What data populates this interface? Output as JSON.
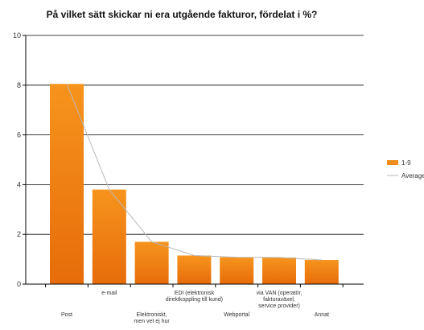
{
  "chart_data": {
    "type": "bar",
    "title": "På vilket sätt skickar ni era utgående fakturor, fördelat i %?",
    "xlabel": "",
    "ylabel": "",
    "ylim": [
      0,
      10
    ],
    "yticks": [
      0,
      2,
      4,
      6,
      8,
      10
    ],
    "grid": true,
    "legend_position": "right",
    "categories": [
      "Post",
      "e-mail",
      "Elektroniskt, men vet ej hur",
      "EDI (elektronisk direktkoppling till kund)",
      "Webportal",
      "via VAN (operatör, fakturaväxel, service provider)",
      "Annat"
    ],
    "category_label_lines": [
      [
        "Post"
      ],
      [
        "e-mail"
      ],
      [
        "Elektroniskt,",
        "men vet ej hur"
      ],
      [
        "EDI (elektronisk",
        "direktkoppling till kund)"
      ],
      [
        "Webportal"
      ],
      [
        "via VAN (operatör,",
        "fakturaväxel,",
        "service provider)"
      ],
      [
        "Annat"
      ]
    ],
    "series": [
      {
        "name": "1-9",
        "type": "bar",
        "color": "#f08c1a",
        "values": [
          8.05,
          3.8,
          1.7,
          1.15,
          1.08,
          1.07,
          0.97
        ]
      },
      {
        "name": "Average",
        "type": "line",
        "color": "#b8b8b8",
        "values": [
          8.05,
          3.8,
          1.7,
          1.15,
          1.08,
          1.07,
          0.97
        ]
      }
    ]
  }
}
